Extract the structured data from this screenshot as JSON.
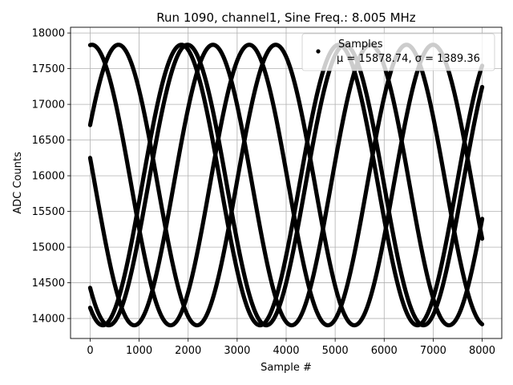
{
  "chart_data": {
    "type": "scatter",
    "title": "Run 1090, channel1, Sine Freq.: 8.005 MHz",
    "xlabel": "Sample #",
    "ylabel": "ADC Counts",
    "xlim": [
      -400,
      8400
    ],
    "ylim": [
      13720,
      18080
    ],
    "x_ticks": [
      0,
      1000,
      2000,
      3000,
      4000,
      5000,
      6000,
      7000,
      8000
    ],
    "y_ticks": [
      14000,
      14500,
      15000,
      15500,
      16000,
      16500,
      17000,
      17500,
      18000
    ],
    "grid": true,
    "legend": {
      "placement": "top-right",
      "entries": [
        {
          "label": "Samples",
          "stat_line": "μ = 15878.74, σ = 1389.36"
        }
      ]
    },
    "point_color": "#000000",
    "sample_count": 8000,
    "series": [
      {
        "name": "Samples",
        "description": "sinusoidal traces, amplitude ~1960, center ~15870, period ~3210 samples",
        "traces": [
          {
            "start": 17830,
            "end": 16270
          },
          {
            "start": 16710,
            "end": 17830
          },
          {
            "start": 16250,
            "end": 14170
          },
          {
            "start": 14430,
            "end": 16690
          },
          {
            "start": 14150,
            "end": 14420
          }
        ],
        "center": 15870,
        "amplitude": 1965,
        "period": 3210
      }
    ]
  }
}
